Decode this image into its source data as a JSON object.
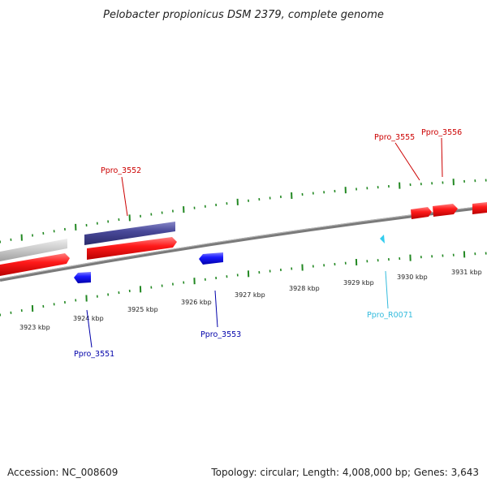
{
  "title": "Pelobacter propionicus DSM 2379, complete genome",
  "footer": {
    "accession": "Accession: NC_008609",
    "summary": "Topology: circular; Length: 4,008,000 bp; Genes: 3,643"
  },
  "ruler_labels": [
    "3923 kbp",
    "3924 kbp",
    "3925 kbp",
    "3926 kbp",
    "3927 kbp",
    "3928 kbp",
    "3929 kbp",
    "3930 kbp",
    "3931 kbp"
  ],
  "gene_labels": {
    "ppro_3552": "Ppro_3552",
    "ppro_3555": "Ppro_3555",
    "ppro_3556": "Ppro_3556",
    "ppro_3551": "Ppro_3551",
    "ppro_3553": "Ppro_3553",
    "ppro_r0071": "Ppro_R0071"
  },
  "colors": {
    "forward_gene": "#ff1a1a",
    "reverse_gene": "#1a1aff",
    "rna_gene": "#33ccee",
    "highlight_bar": "#4a4a9a",
    "grey_bar": "#c8c8c8",
    "backbone": "#888888",
    "tick": "#228822",
    "forward_label": "#cc0000",
    "reverse_label": "#0000aa",
    "rna_label": "#33bbdd"
  }
}
